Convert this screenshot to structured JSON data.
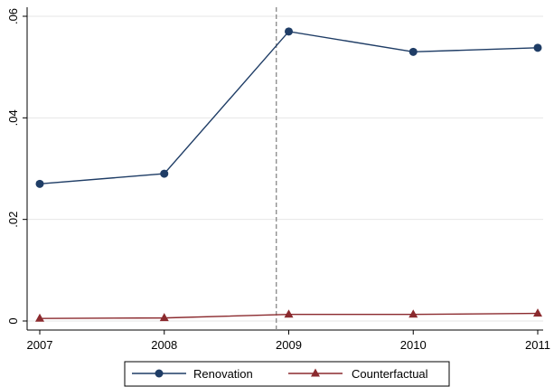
{
  "chart_data": {
    "type": "line",
    "x": [
      "2007",
      "2008",
      "2009",
      "2010",
      "2011"
    ],
    "series": [
      {
        "name": "Renovation",
        "values": [
          0.027,
          0.029,
          0.057,
          0.053,
          0.0538
        ],
        "color": "#1f3d66",
        "marker": "circle"
      },
      {
        "name": "Counterfactual",
        "values": [
          0.0005,
          0.0006,
          0.0013,
          0.0013,
          0.0015
        ],
        "color": "#8b2a2e",
        "marker": "triangle"
      }
    ],
    "ylim": [
      0,
      0.06
    ],
    "yticks": [
      {
        "value": 0,
        "label": "0"
      },
      {
        "value": 0.02,
        "label": ".02"
      },
      {
        "value": 0.04,
        "label": ".04"
      },
      {
        "value": 0.06,
        "label": ".06"
      }
    ],
    "xticks": [
      "2007",
      "2008",
      "2009",
      "2010",
      "2011"
    ],
    "reference_line": {
      "x": 2008.9,
      "style": "dashed",
      "color": "#888888"
    },
    "grid": "horizontal",
    "legend": "bottom",
    "title": "",
    "xlabel": "",
    "ylabel": ""
  }
}
